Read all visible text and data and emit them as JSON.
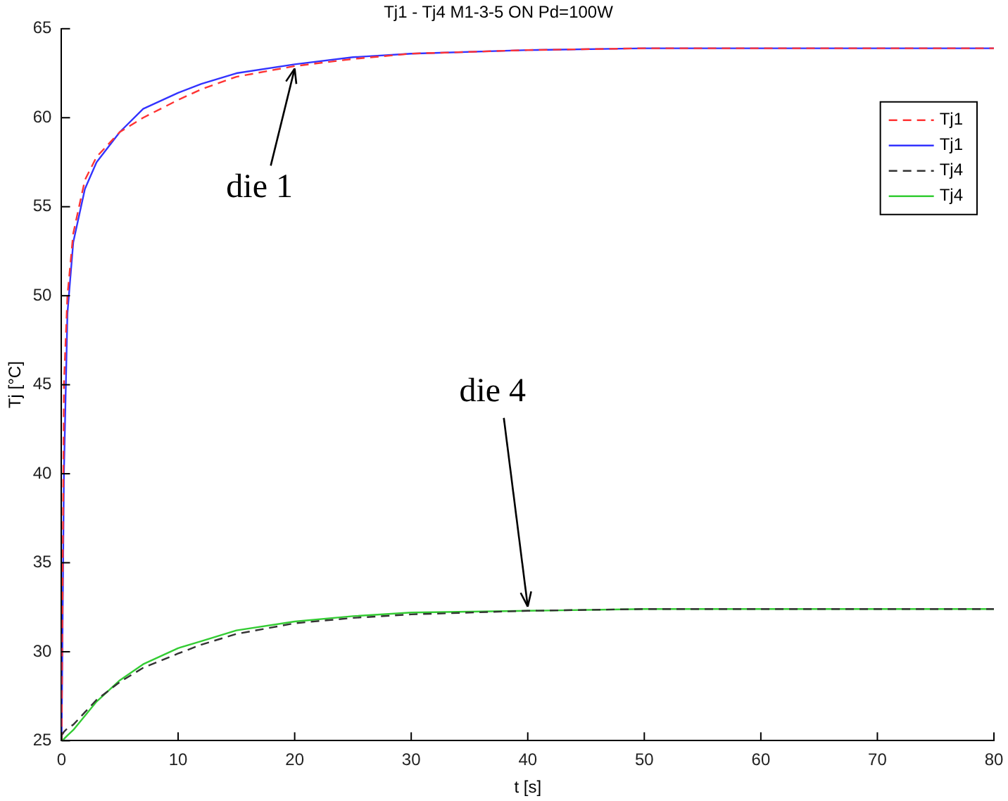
{
  "chart_data": {
    "type": "line",
    "title": "Tj1 - Tj4 M1-3-5 ON Pd=100W",
    "xlabel": "t [s]",
    "ylabel": "Tj [°C]",
    "x": [
      0,
      0.2,
      0.5,
      1,
      2,
      3,
      5,
      7,
      10,
      12,
      15,
      20,
      25,
      30,
      40,
      50,
      60,
      80
    ],
    "series": [
      {
        "name": "Tj1",
        "color": "#ff3333",
        "line_style": "dashed",
        "values": [
          25,
          45,
          50,
          53.5,
          56.5,
          57.8,
          59.2,
          60,
          61,
          61.6,
          62.3,
          62.9,
          63.3,
          63.6,
          63.8,
          63.9,
          63.9,
          63.9
        ]
      },
      {
        "name": "Tj1",
        "color": "#3333ff",
        "line_style": "solid",
        "values": [
          25,
          40,
          49,
          53,
          56,
          57.5,
          59.2,
          60.5,
          61.4,
          61.9,
          62.5,
          63,
          63.4,
          63.6,
          63.8,
          63.9,
          63.9,
          63.9
        ]
      },
      {
        "name": "Tj4",
        "color": "#333333",
        "line_style": "dashed",
        "values": [
          25.3,
          25.5,
          25.7,
          25.9,
          26.6,
          27.3,
          28.3,
          29.1,
          29.9,
          30.4,
          31,
          31.6,
          31.9,
          32.1,
          32.3,
          32.4,
          32.4,
          32.4
        ]
      },
      {
        "name": "Tj4",
        "color": "#33cc33",
        "line_style": "solid",
        "values": [
          25,
          25.1,
          25.3,
          25.6,
          26.4,
          27.2,
          28.4,
          29.3,
          30.2,
          30.6,
          31.2,
          31.7,
          32,
          32.2,
          32.3,
          32.4,
          32.4,
          32.4
        ]
      }
    ],
    "xlim": [
      0,
      80
    ],
    "xticks": [
      0,
      10,
      20,
      30,
      40,
      50,
      60,
      70,
      80
    ],
    "ylim": [
      25,
      65
    ],
    "yticks": [
      25,
      30,
      35,
      40,
      45,
      50,
      55,
      60,
      65
    ],
    "grid": false,
    "legend": "top right",
    "marker": "none",
    "annotations": [
      {
        "text": "die 1",
        "x": 20,
        "y": 63
      },
      {
        "text": "die 4",
        "x": 40,
        "y": 32.3
      }
    ]
  }
}
